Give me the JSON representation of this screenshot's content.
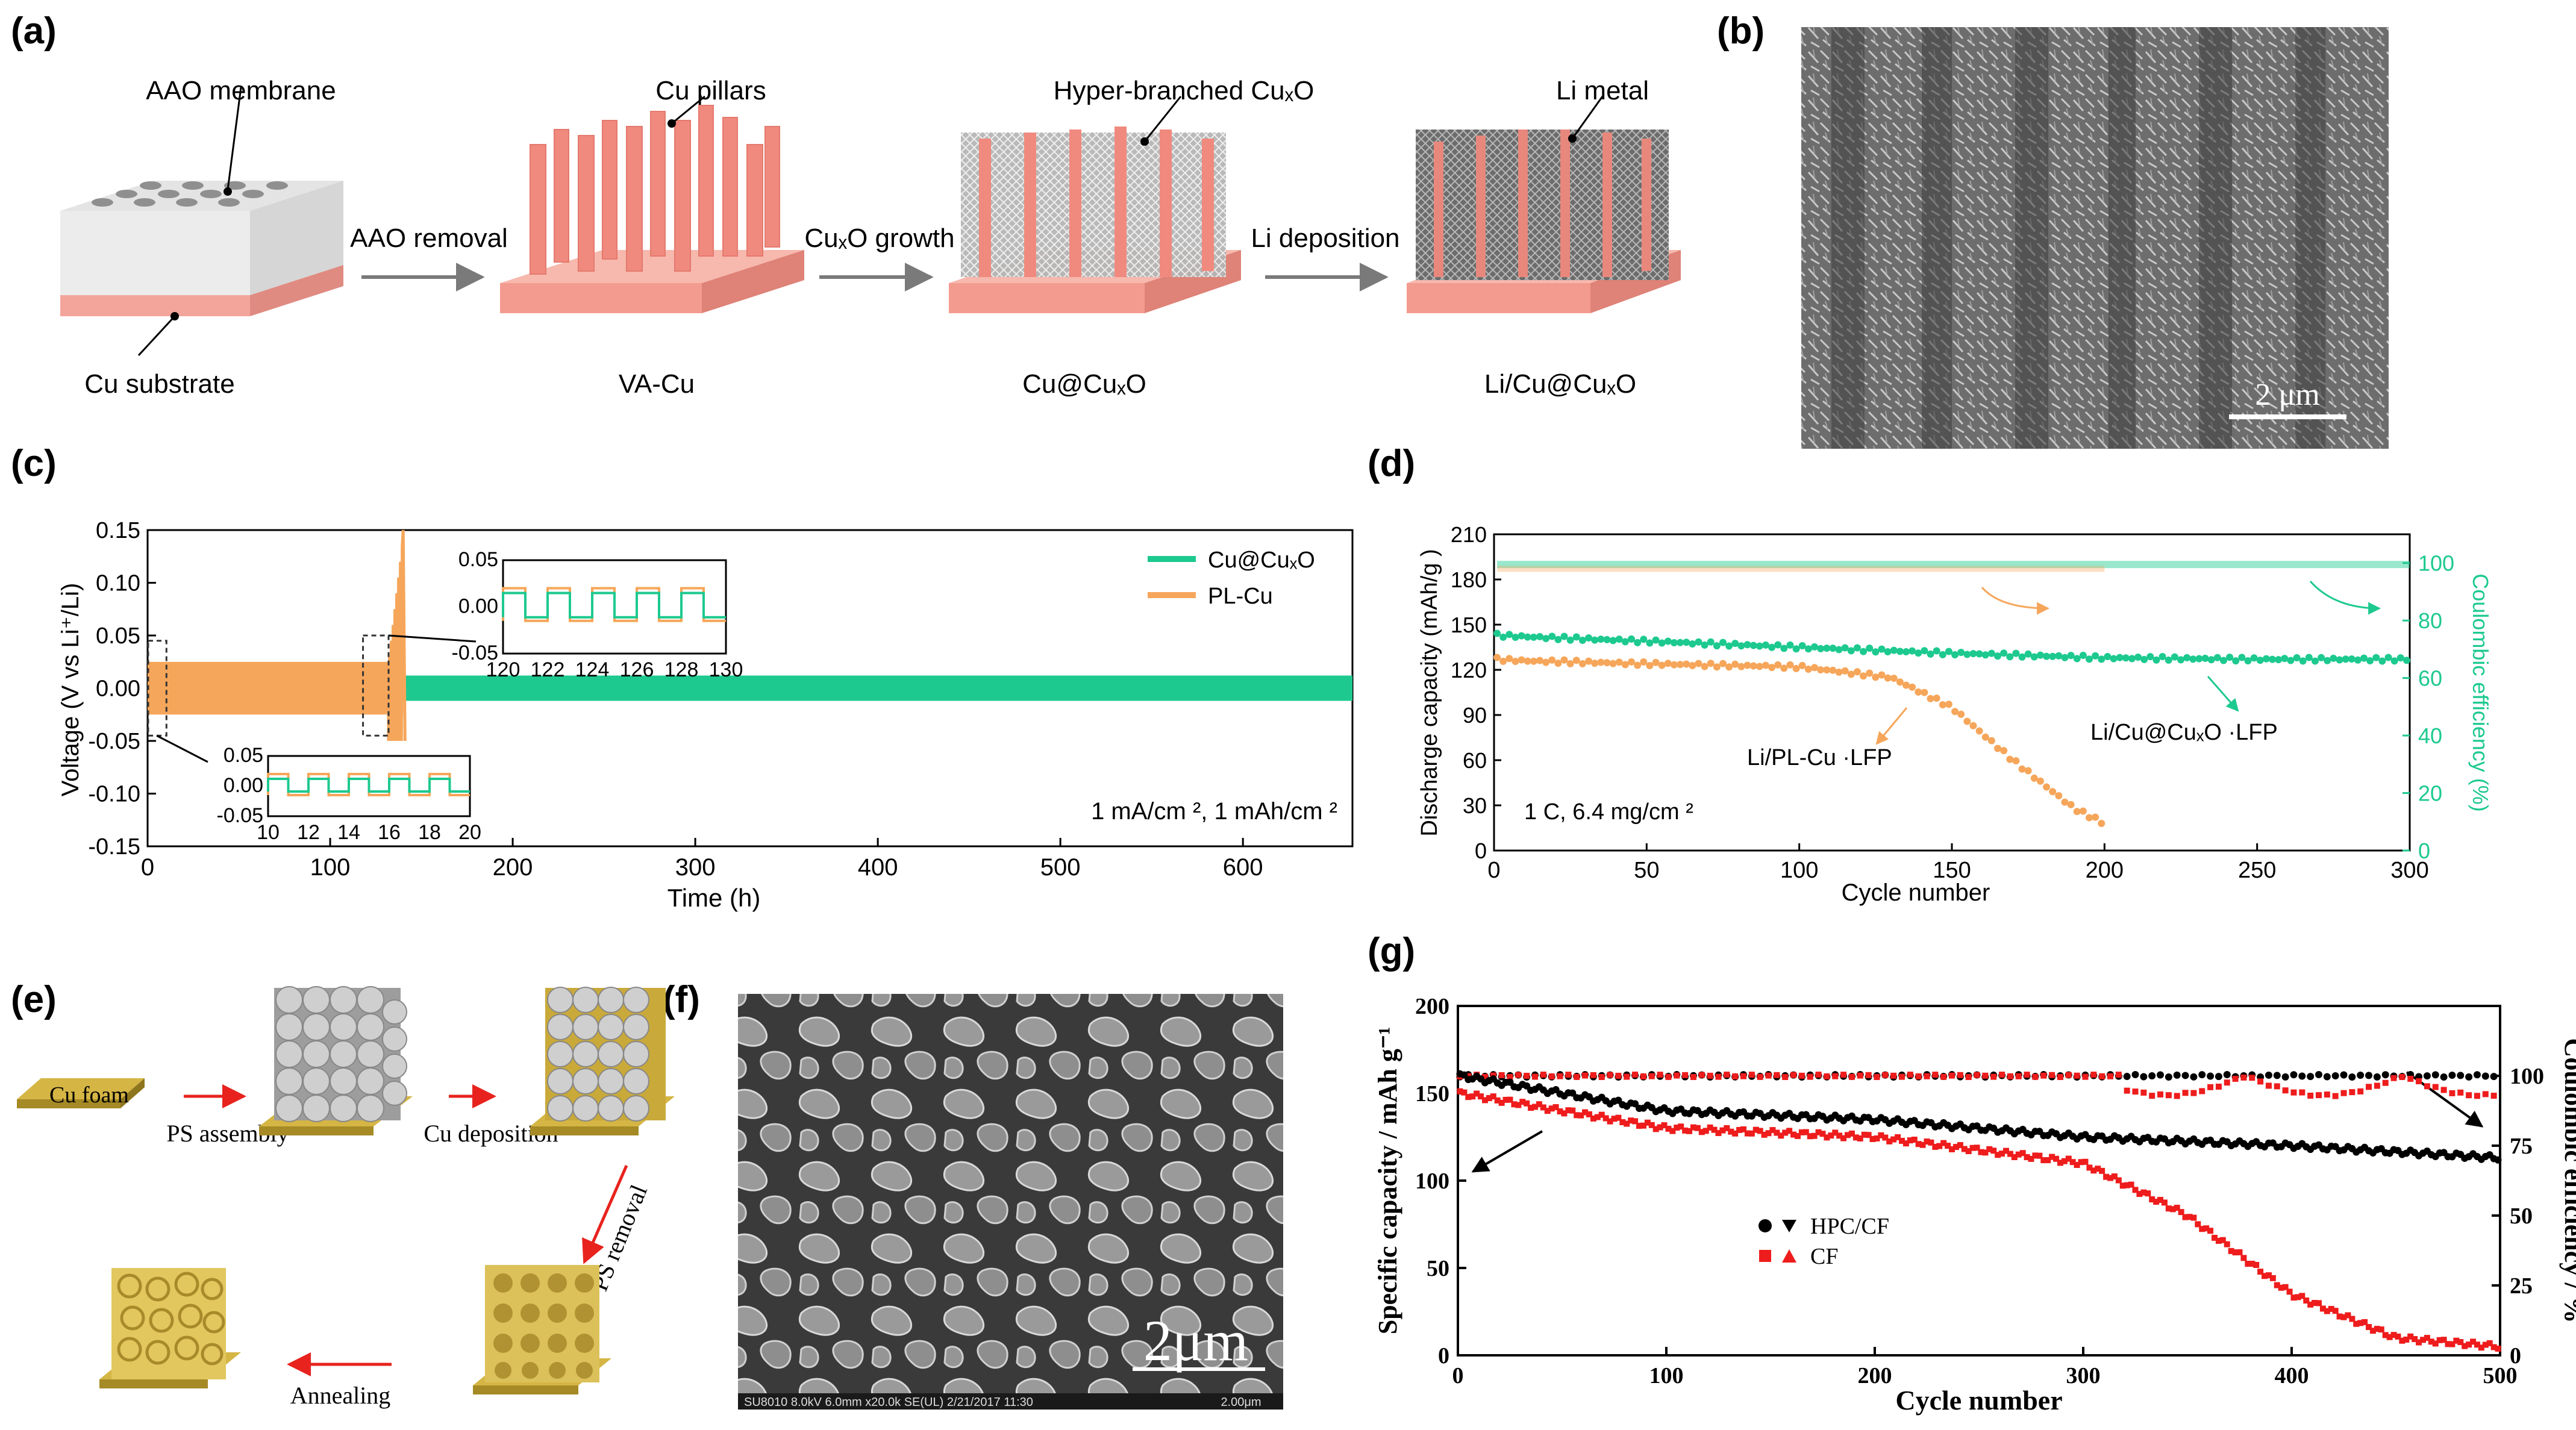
{
  "panel_labels": {
    "a": "(a)",
    "b": "(b)",
    "c": "(c)",
    "d": "(d)",
    "e": "(e)",
    "f": "(f)",
    "g": "(g)"
  },
  "panel_a": {
    "aao_membrane": "AAO membrane",
    "cu_substrate": "Cu substrate",
    "step1": "AAO removal",
    "cu_pillars": "Cu pillars",
    "va_cu": "VA-Cu",
    "step2": "CuₓO growth",
    "hyper": "Hyper-branched CuₓO",
    "cu_cuxo": "Cu@CuₓO",
    "step3": "Li deposition",
    "li_metal": "Li metal",
    "li_cu_cuxo": "Li/Cu@CuₓO"
  },
  "panel_b": {
    "scale": "2 μm"
  },
  "panel_c": {
    "chart_data": {
      "type": "line",
      "xlabel": "Time (h)",
      "ylabel": "Voltage (V vs Li⁺/Li)",
      "xlim": [
        0,
        660
      ],
      "ylim": [
        -0.15,
        0.15
      ],
      "xticks": [
        "0",
        "100",
        "200",
        "300",
        "400",
        "500",
        "600"
      ],
      "yticks": [
        "0.15",
        "0.10",
        "0.05",
        "0.00",
        "-0.05",
        "-0.10",
        "-0.15"
      ],
      "series": [
        {
          "name": "Cu@CuₓO",
          "color": "#1dc98f",
          "x_range": [
            0,
            660
          ],
          "amplitude": 0.012
        },
        {
          "name": "PL-Cu",
          "color": "#f6a65a",
          "x_range": [
            0,
            140
          ],
          "amplitude": 0.025,
          "peak": 0.15
        }
      ],
      "annotation": "1 mA/cm ², 1 mAh/cm ²",
      "inset1": {
        "xticks": [
          "120",
          "122",
          "124",
          "126",
          "128",
          "130"
        ],
        "yticks": [
          "0.05",
          "0.00",
          "-0.05"
        ]
      },
      "inset2": {
        "xticks": [
          "10",
          "12",
          "14",
          "16",
          "18",
          "20"
        ],
        "yticks": [
          "0.05",
          "0.00",
          "-0.05"
        ]
      }
    }
  },
  "panel_d": {
    "chart_data": {
      "type": "scatter",
      "xlabel": "Cycle number",
      "ylabel": "Discharge capacity (mAh/g )",
      "y2label": "Coulombic efficiency (%)",
      "xlim": [
        0,
        300
      ],
      "ylim": [
        0,
        210
      ],
      "y2lim": [
        0,
        110
      ],
      "xticks": [
        "0",
        "50",
        "100",
        "150",
        "200",
        "250",
        "300"
      ],
      "yticks": [
        "0",
        "30",
        "60",
        "90",
        "120",
        "150",
        "180",
        "210"
      ],
      "y2ticks": [
        "0",
        "20",
        "40",
        "60",
        "80",
        "100"
      ],
      "series": [
        {
          "name": "Li/Cu@CuₓO ·LFP",
          "color": "#1dc98f",
          "x": [
            1,
            10,
            50,
            100,
            150,
            200,
            250,
            300
          ],
          "values": [
            143,
            142,
            139,
            135,
            131,
            128,
            127,
            127
          ]
        },
        {
          "name": "Li/PL-Cu ·LFP",
          "color": "#f6a65a",
          "x": [
            1,
            10,
            50,
            100,
            130,
            150,
            170,
            190,
            200
          ],
          "values": [
            127,
            126,
            124,
            122,
            115,
            95,
            60,
            28,
            18
          ]
        }
      ],
      "annotation": "1 C, 6.4 mg/cm ²"
    }
  },
  "panel_e": {
    "cu_foam": "Cu foam",
    "ps_assembly": "PS assembly",
    "cu_deposition": "Cu deposition",
    "ps_removal": "PS removal",
    "annealing": "Annealing"
  },
  "panel_f": {
    "scale": "2μm",
    "info": "SU8010 8.0kV 6.0mm x20.0k SE(UL) 2/21/2017 11:30",
    "scale_small": "2.00μm"
  },
  "panel_g": {
    "chart_data": {
      "type": "scatter",
      "xlabel": "Cycle number",
      "ylabel": "Specific capacity / mAh g⁻¹",
      "y2label": "Coulombic efficiency / %",
      "xlim": [
        0,
        500
      ],
      "ylim": [
        0,
        200
      ],
      "y2lim": [
        0,
        125
      ],
      "xticks": [
        "0",
        "100",
        "200",
        "300",
        "400",
        "500"
      ],
      "yticks": [
        "0",
        "50",
        "100",
        "150",
        "200"
      ],
      "y2ticks": [
        "0",
        "25",
        "50",
        "75",
        "100"
      ],
      "series": [
        {
          "name": "HPC/CF",
          "color": "#000000",
          "x": [
            1,
            50,
            100,
            200,
            300,
            400,
            500
          ],
          "values": [
            160,
            150,
            140,
            135,
            125,
            120,
            113
          ]
        },
        {
          "name": "CF",
          "color": "#ee1c1c",
          "x": [
            1,
            50,
            100,
            200,
            300,
            350,
            400,
            450,
            500
          ],
          "values": [
            150,
            140,
            130,
            125,
            110,
            80,
            35,
            10,
            5
          ]
        }
      ]
    }
  }
}
